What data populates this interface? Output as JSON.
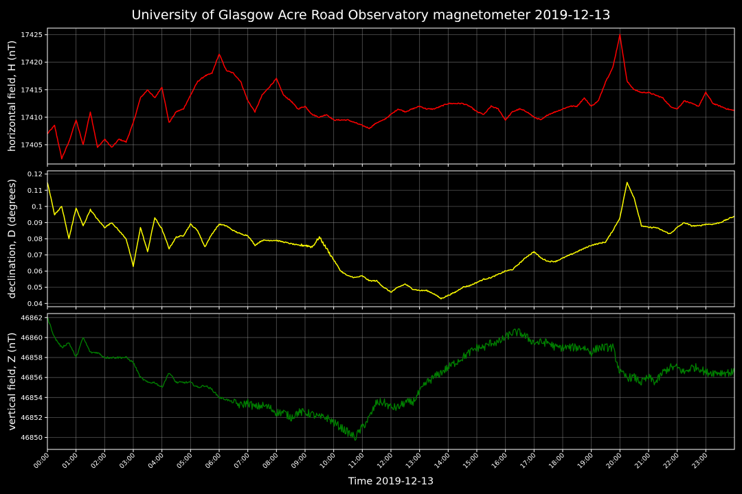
{
  "chart_data": {
    "type": "line",
    "title": "University of Glasgow Acre Road Observatory magnetometer 2019-12-13",
    "xlabel": "Time 2019-12-13",
    "x_ticks": [
      "00:00",
      "01:00",
      "02:00",
      "03:00",
      "04:00",
      "05:00",
      "06:00",
      "07:00",
      "08:00",
      "09:00",
      "10:00",
      "11:00",
      "12:00",
      "13:00",
      "14:00",
      "15:00",
      "16:00",
      "17:00",
      "18:00",
      "19:00",
      "20:00",
      "21:00",
      "22:00",
      "23:00"
    ],
    "xlim_hours": [
      0,
      24
    ],
    "grid": true,
    "x_hours": [
      0,
      0.25,
      0.5,
      0.75,
      1,
      1.25,
      1.5,
      1.75,
      2,
      2.25,
      2.5,
      2.75,
      3,
      3.25,
      3.5,
      3.75,
      4,
      4.25,
      4.5,
      4.75,
      5,
      5.25,
      5.5,
      5.75,
      6,
      6.25,
      6.5,
      6.75,
      7,
      7.25,
      7.5,
      7.75,
      8,
      8.25,
      8.5,
      8.75,
      9,
      9.25,
      9.5,
      9.75,
      10,
      10.25,
      10.5,
      10.75,
      11,
      11.25,
      11.5,
      11.75,
      12,
      12.25,
      12.5,
      12.75,
      13,
      13.25,
      13.5,
      13.75,
      14,
      14.25,
      14.5,
      14.75,
      15,
      15.25,
      15.5,
      15.75,
      16,
      16.25,
      16.5,
      16.75,
      17,
      17.25,
      17.5,
      17.75,
      18,
      18.25,
      18.5,
      18.75,
      19,
      19.25,
      19.5,
      19.75,
      20,
      20.25,
      20.5,
      20.75,
      21,
      21.25,
      21.5,
      21.75,
      22,
      22.25,
      22.5,
      22.75,
      23,
      23.25,
      23.5,
      23.75,
      24
    ],
    "panels": [
      {
        "ylabel": "horizontal field, H (nT)",
        "color": "#ff0000",
        "ylim": [
          17401.5,
          17426.2
        ],
        "yticks": [
          17405,
          17410,
          17415,
          17420,
          17425
        ],
        "series": [
          {
            "name": "H",
            "values": [
              17407,
              17408.5,
              17402.5,
              17405.5,
              17409.5,
              17405,
              17411,
              17404.5,
              17406,
              17404.5,
              17406,
              17405.5,
              17409,
              17413.5,
              17415,
              17413.5,
              17415.5,
              17409,
              17411,
              17411.5,
              17414,
              17416.5,
              17417.5,
              17418,
              17421.5,
              17418.5,
              17418,
              17416.5,
              17413,
              17411,
              17414,
              17415.5,
              17417,
              17414,
              17413,
              17411.5,
              17412,
              17410.5,
              17410,
              17410.5,
              17409.5,
              17409.5,
              17409.5,
              17409,
              17408.5,
              17408,
              17409,
              17409.5,
              17410.5,
              17411.5,
              17411,
              17411.5,
              17412,
              17411.5,
              17411.5,
              17412,
              17412.5,
              17412.5,
              17412.5,
              17412,
              17411,
              17410.5,
              17412,
              17411.5,
              17409.5,
              17411,
              17411.5,
              17411,
              17410,
              17409.5,
              17410.5,
              17411,
              17411.5,
              17412,
              17412,
              17413.5,
              17412,
              17413,
              17416.5,
              17419,
              17425,
              17416.5,
              17415,
              17414.5,
              17414.5,
              17414,
              17413.5,
              17412,
              17411.5,
              17413,
              17412.5,
              17412,
              17414.5,
              17412.5,
              17412,
              17411.5,
              17411.2
            ]
          }
        ]
      },
      {
        "ylabel": "declination, D (degrees)",
        "color": "#ffff00",
        "ylim": [
          0.038,
          0.122
        ],
        "yticks": [
          0.04,
          0.05,
          0.06,
          0.07,
          0.08,
          0.09,
          0.1,
          0.11,
          0.12
        ],
        "series": [
          {
            "name": "D",
            "values": [
              0.115,
              0.095,
              0.1,
              0.08,
              0.099,
              0.088,
              0.098,
              0.092,
              0.087,
              0.09,
              0.085,
              0.08,
              0.063,
              0.087,
              0.072,
              0.093,
              0.086,
              0.074,
              0.081,
              0.082,
              0.089,
              0.085,
              0.075,
              0.083,
              0.089,
              0.088,
              0.085,
              0.083,
              0.082,
              0.076,
              0.079,
              0.079,
              0.079,
              0.078,
              0.077,
              0.076,
              0.076,
              0.075,
              0.081,
              0.074,
              0.067,
              0.06,
              0.057,
              0.056,
              0.057,
              0.054,
              0.054,
              0.05,
              0.047,
              0.05,
              0.052,
              0.049,
              0.048,
              0.048,
              0.046,
              0.043,
              0.045,
              0.047,
              0.05,
              0.051,
              0.053,
              0.055,
              0.056,
              0.058,
              0.06,
              0.061,
              0.065,
              0.069,
              0.072,
              0.068,
              0.066,
              0.066,
              0.068,
              0.07,
              0.072,
              0.074,
              0.076,
              0.077,
              0.078,
              0.085,
              0.093,
              0.115,
              0.105,
              0.088,
              0.087,
              0.087,
              0.085,
              0.083,
              0.087,
              0.09,
              0.088,
              0.088,
              0.089,
              0.089,
              0.09,
              0.092,
              0.094
            ]
          }
        ]
      },
      {
        "ylabel": "vertical field, Z (nT)",
        "color": "#008000",
        "ylim": [
          46848.8,
          46862.4
        ],
        "yticks": [
          46850,
          46852,
          46854,
          46856,
          46858,
          46860,
          46862
        ],
        "series": [
          {
            "name": "Z",
            "values": [
              46862,
              46860,
              46859,
              46859.5,
              46858,
              46860,
              46858.5,
              46858.5,
              46858,
              46858,
              46858,
              46858,
              46857.5,
              46856,
              46855.5,
              46855.5,
              46855,
              46856.5,
              46855.5,
              46855.5,
              46855.5,
              46855,
              46855.2,
              46854.8,
              46854,
              46853.8,
              46853.5,
              46853.2,
              46853.5,
              46853,
              46853.2,
              46853,
              46852.5,
              46852.5,
              46852,
              46852.5,
              46852.5,
              46852.3,
              46852,
              46852,
              46851.5,
              46851,
              46850.5,
              46850,
              46851,
              46852,
              46853.5,
              46853.5,
              46853,
              46853,
              46853.5,
              46853.5,
              46854.5,
              46855.5,
              46856,
              46856.5,
              46857,
              46857.5,
              46858,
              46858.5,
              46859,
              46859,
              46859.5,
              46859.5,
              46860,
              46860.5,
              46860.5,
              46860,
              46859.5,
              46859.5,
              46859.5,
              46859,
              46859,
              46859,
              46859,
              46859,
              46858.5,
              46859,
              46859,
              46859,
              46856.5,
              46856,
              46856,
              46855.5,
              46856,
              46855.5,
              46856.5,
              46857,
              46857,
              46856.5,
              46857,
              46857,
              46856.5,
              46856.5,
              46856.5,
              46856.5,
              46856.5
            ]
          }
        ]
      }
    ]
  }
}
